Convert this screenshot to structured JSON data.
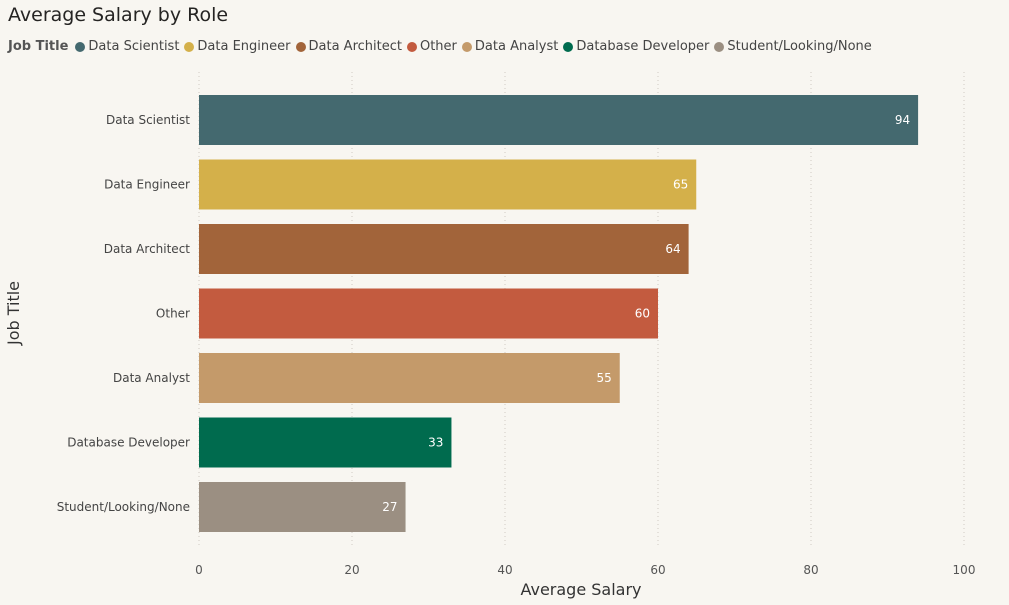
{
  "chart_data": {
    "type": "bar",
    "orientation": "horizontal",
    "title": "Average Salary by Role",
    "xlabel": "Average Salary",
    "ylabel": "Job Title",
    "xlim": [
      0,
      100
    ],
    "xticks": [
      0,
      20,
      40,
      60,
      80,
      100
    ],
    "grid": "vertical-dotted",
    "legend": {
      "title": "Job Title",
      "placement": "top-left"
    },
    "categories": [
      "Data Scientist",
      "Data Engineer",
      "Data Architect",
      "Other",
      "Data Analyst",
      "Database Developer",
      "Student/Looking/None"
    ],
    "values": [
      94,
      65,
      64,
      60,
      55,
      33,
      27
    ],
    "colors": [
      "#44696f",
      "#d4b04a",
      "#a2643a",
      "#c35b3f",
      "#c49a6a",
      "#006b4e",
      "#9b8f82"
    ]
  }
}
